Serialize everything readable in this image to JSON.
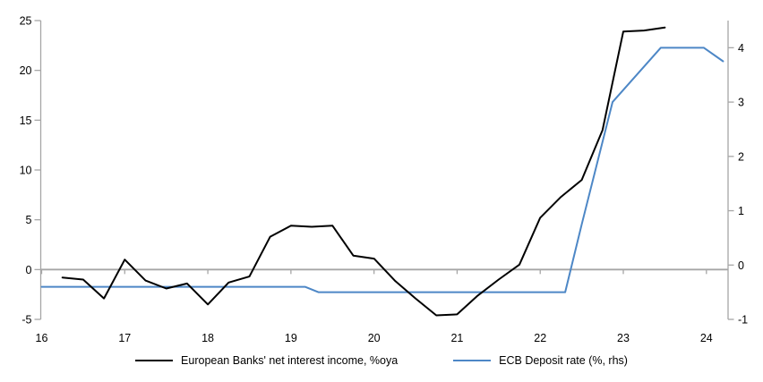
{
  "chart_data": {
    "type": "line",
    "title": "",
    "x_axis": {
      "min": 16,
      "max": 24.25,
      "ticks": [
        16,
        17,
        18,
        19,
        20,
        21,
        22,
        23,
        24
      ],
      "tick_labels": [
        "16",
        "17",
        "18",
        "19",
        "20",
        "21",
        "22",
        "23",
        "24"
      ]
    },
    "left_axis": {
      "min": -5,
      "max": 25,
      "ticks": [
        25,
        20,
        15,
        10,
        5,
        0,
        -5
      ],
      "tick_labels": [
        "25",
        "20",
        "15",
        "10",
        "5",
        "0",
        "-5"
      ]
    },
    "right_axis": {
      "min": -1,
      "max": 4.5,
      "ticks": [
        4,
        3,
        2,
        1,
        0,
        -1
      ],
      "tick_labels": [
        "4",
        "3",
        "2",
        "1",
        "0",
        "-1"
      ]
    },
    "zero_line": true,
    "grid": false,
    "legend_position": "bottom-center",
    "colors": {
      "axis": "#a6a6a6",
      "zero_line": "#a6a6a6",
      "tick_text": "#000000"
    },
    "series": [
      {
        "name": "European Banks' net interest income, %oya",
        "axis": "left",
        "color": "#000000",
        "points": [
          [
            16.25,
            -0.8
          ],
          [
            16.5,
            -1.0
          ],
          [
            16.75,
            -2.9
          ],
          [
            17.0,
            1.0
          ],
          [
            17.25,
            -1.1
          ],
          [
            17.5,
            -1.9
          ],
          [
            17.75,
            -1.4
          ],
          [
            18.0,
            -3.5
          ],
          [
            18.25,
            -1.3
          ],
          [
            18.5,
            -0.7
          ],
          [
            18.75,
            3.3
          ],
          [
            19.0,
            4.4
          ],
          [
            19.25,
            4.3
          ],
          [
            19.5,
            4.4
          ],
          [
            19.75,
            1.4
          ],
          [
            20.0,
            1.1
          ],
          [
            20.25,
            -1.1
          ],
          [
            20.5,
            -2.9
          ],
          [
            20.75,
            -4.6
          ],
          [
            21.0,
            -4.5
          ],
          [
            21.25,
            -2.6
          ],
          [
            21.5,
            -1.0
          ],
          [
            21.75,
            0.5
          ],
          [
            22.0,
            5.2
          ],
          [
            22.25,
            7.3
          ],
          [
            22.5,
            9.0
          ],
          [
            22.75,
            14.0
          ],
          [
            23.0,
            23.9
          ],
          [
            23.25,
            24.0
          ],
          [
            23.5,
            24.3
          ]
        ]
      },
      {
        "name": "ECB Deposit rate (%, rhs)",
        "axis": "right",
        "color": "#4d87c6",
        "points": [
          [
            16.0,
            -0.4
          ],
          [
            19.17,
            -0.4
          ],
          [
            19.33,
            -0.5
          ],
          [
            22.3,
            -0.5
          ],
          [
            22.5,
            0.75
          ],
          [
            22.87,
            3.0
          ],
          [
            23.45,
            4.0
          ],
          [
            23.97,
            4.0
          ],
          [
            24.2,
            3.75
          ]
        ]
      }
    ]
  }
}
